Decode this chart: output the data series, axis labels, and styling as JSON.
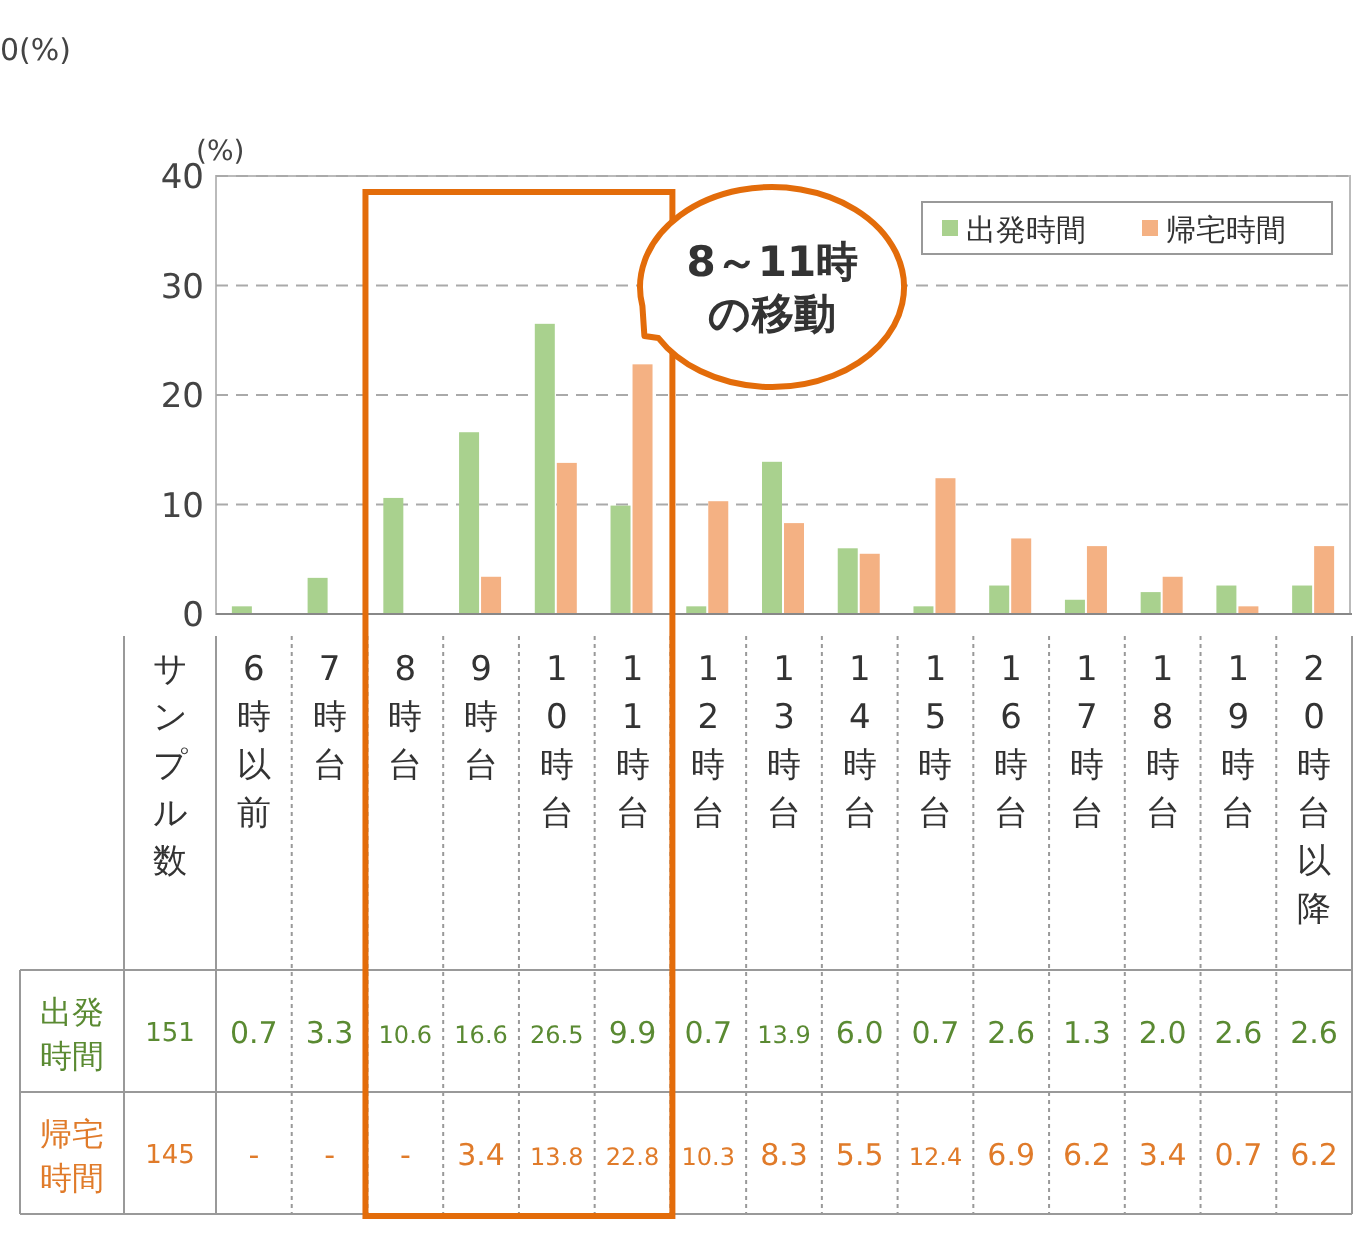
{
  "chart_data": {
    "type": "bar",
    "ylabel": "(%)",
    "categories": [
      "6時以前",
      "7時台",
      "8時台",
      "9時台",
      "10時台",
      "11時台",
      "12時台",
      "13時台",
      "14時台",
      "15時台",
      "16時台",
      "17時台",
      "18時台",
      "19時台",
      "20時台以降"
    ],
    "series": [
      {
        "name": "出発時間",
        "color": "#a9d18e",
        "values": [
          0.7,
          3.3,
          10.6,
          16.6,
          26.5,
          9.9,
          0.7,
          13.9,
          6.0,
          0.7,
          2.6,
          1.3,
          2.0,
          2.6,
          2.6
        ],
        "value_labels": [
          "0.7",
          "3.3",
          "10.6",
          "16.6",
          "26.5",
          "9.9",
          "0.7",
          "13.9",
          "6.0",
          "0.7",
          "2.6",
          "1.3",
          "2.0",
          "2.6",
          "2.6"
        ]
      },
      {
        "name": "帰宅時間",
        "color": "#f4b183",
        "values": [
          null,
          null,
          null,
          3.4,
          13.8,
          22.8,
          10.3,
          8.3,
          5.5,
          12.4,
          6.9,
          6.2,
          3.4,
          0.7,
          6.2
        ],
        "value_labels": [
          "-",
          "-",
          "-",
          "3.4",
          "13.8",
          "22.8",
          "10.3",
          "8.3",
          "5.5",
          "12.4",
          "6.9",
          "6.2",
          "3.4",
          "0.7",
          "6.2"
        ]
      }
    ],
    "ylim": [
      0,
      40
    ],
    "yticks": [
      0,
      10,
      20,
      30,
      40
    ],
    "grid": "y",
    "legend": "top right",
    "annotations": [
      "0(%)",
      "8～11時",
      "の移動",
      "サンプル数",
      "151",
      "145",
      "出発",
      "時間",
      "帰宅",
      "時間"
    ]
  }
}
